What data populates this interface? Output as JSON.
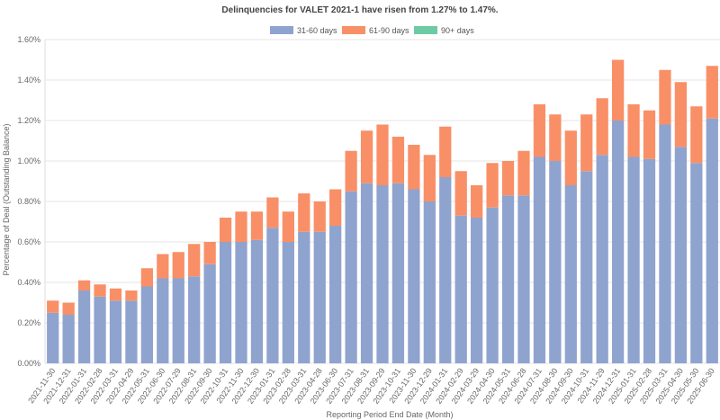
{
  "chart_data": {
    "type": "bar",
    "stacked": true,
    "title": "Delinquencies for VALET 2021-1 have risen from 1.27% to 1.47%.",
    "xlabel": "Reporting Period End Date (Month)",
    "ylabel": "Percentage of Deal (Outstanding Balance)",
    "ylim": [
      0,
      1.6
    ],
    "yticks": [
      "0.00%",
      "0.20%",
      "0.40%",
      "0.60%",
      "0.80%",
      "1.00%",
      "1.20%",
      "1.40%",
      "1.60%"
    ],
    "categories": [
      "2021-11-30",
      "2021-12-31",
      "2022-01-31",
      "2022-02-28",
      "2022-03-31",
      "2022-04-29",
      "2022-05-31",
      "2022-06-30",
      "2022-07-29",
      "2022-08-31",
      "2022-09-30",
      "2022-10-31",
      "2022-11-30",
      "2022-12-30",
      "2023-01-31",
      "2023-02-28",
      "2023-03-31",
      "2023-04-28",
      "2023-06-30",
      "2023-07-31",
      "2023-08-31",
      "2023-09-29",
      "2023-10-31",
      "2023-11-30",
      "2023-12-29",
      "2024-01-31",
      "2024-02-29",
      "2024-03-29",
      "2024-04-30",
      "2024-05-31",
      "2024-06-28",
      "2024-07-31",
      "2024-08-30",
      "2024-09-30",
      "2024-10-31",
      "2024-11-29",
      "2024-12-31",
      "2025-01-31",
      "2025-02-28",
      "2025-03-31",
      "2025-04-30",
      "2025-05-30",
      "2025-06-30"
    ],
    "series": [
      {
        "name": "31-60 days",
        "color": "#8fa3cf",
        "values": [
          0.25,
          0.24,
          0.36,
          0.33,
          0.31,
          0.31,
          0.38,
          0.42,
          0.42,
          0.43,
          0.49,
          0.6,
          0.6,
          0.61,
          0.67,
          0.6,
          0.65,
          0.65,
          0.68,
          0.85,
          0.89,
          0.88,
          0.89,
          0.86,
          0.8,
          0.92,
          0.73,
          0.72,
          0.77,
          0.83,
          0.83,
          1.02,
          1.0,
          0.88,
          0.95,
          1.03,
          1.2,
          1.02,
          1.01,
          1.18,
          1.07,
          0.99,
          1.21
        ]
      },
      {
        "name": "61-90 days",
        "color": "#f98f67",
        "values": [
          0.06,
          0.06,
          0.05,
          0.06,
          0.06,
          0.05,
          0.09,
          0.12,
          0.13,
          0.16,
          0.11,
          0.12,
          0.15,
          0.14,
          0.15,
          0.15,
          0.19,
          0.15,
          0.18,
          0.2,
          0.26,
          0.3,
          0.23,
          0.22,
          0.23,
          0.25,
          0.22,
          0.16,
          0.22,
          0.17,
          0.22,
          0.26,
          0.23,
          0.27,
          0.28,
          0.28,
          0.3,
          0.26,
          0.24,
          0.27,
          0.32,
          0.28,
          0.26
        ]
      },
      {
        "name": "90+ days",
        "color": "#6ccba5",
        "values": [
          0,
          0,
          0,
          0,
          0,
          0,
          0,
          0,
          0,
          0,
          0,
          0,
          0,
          0,
          0,
          0,
          0,
          0,
          0,
          0,
          0,
          0,
          0,
          0,
          0,
          0,
          0,
          0,
          0,
          0,
          0,
          0,
          0,
          0,
          0,
          0,
          0,
          0,
          0,
          0,
          0,
          0,
          0
        ]
      }
    ]
  }
}
